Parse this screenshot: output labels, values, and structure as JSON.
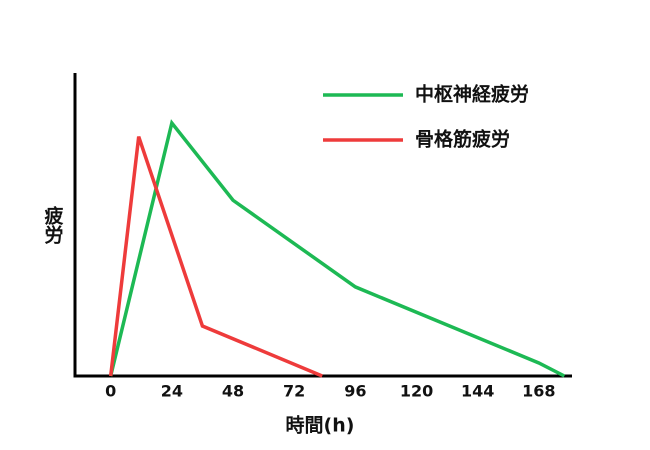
{
  "chart_data": {
    "type": "line",
    "x_label": "時間(h)",
    "y_label": "疲労",
    "x": [
      0,
      24,
      48,
      96,
      168,
      178,
      11,
      36,
      83
    ],
    "series": [
      {
        "name": "中枢神経疲労",
        "color": "#1db954",
        "x": [
          0,
          24,
          48,
          96,
          168,
          178
        ],
        "values": [
          0,
          83.5,
          58,
          29.4,
          4.3,
          0
        ]
      },
      {
        "name": "骨格筋疲労",
        "color": "#ee3b3b",
        "x": [
          0,
          11,
          36,
          83
        ],
        "values": [
          0,
          79,
          16.5,
          0
        ]
      }
    ],
    "xlim": [
      -14,
      181
    ],
    "ylim": [
      0,
      100
    ],
    "xticks": [
      0,
      24,
      48,
      72,
      96,
      120,
      144,
      168
    ],
    "grid": false,
    "legend": "top-right"
  }
}
